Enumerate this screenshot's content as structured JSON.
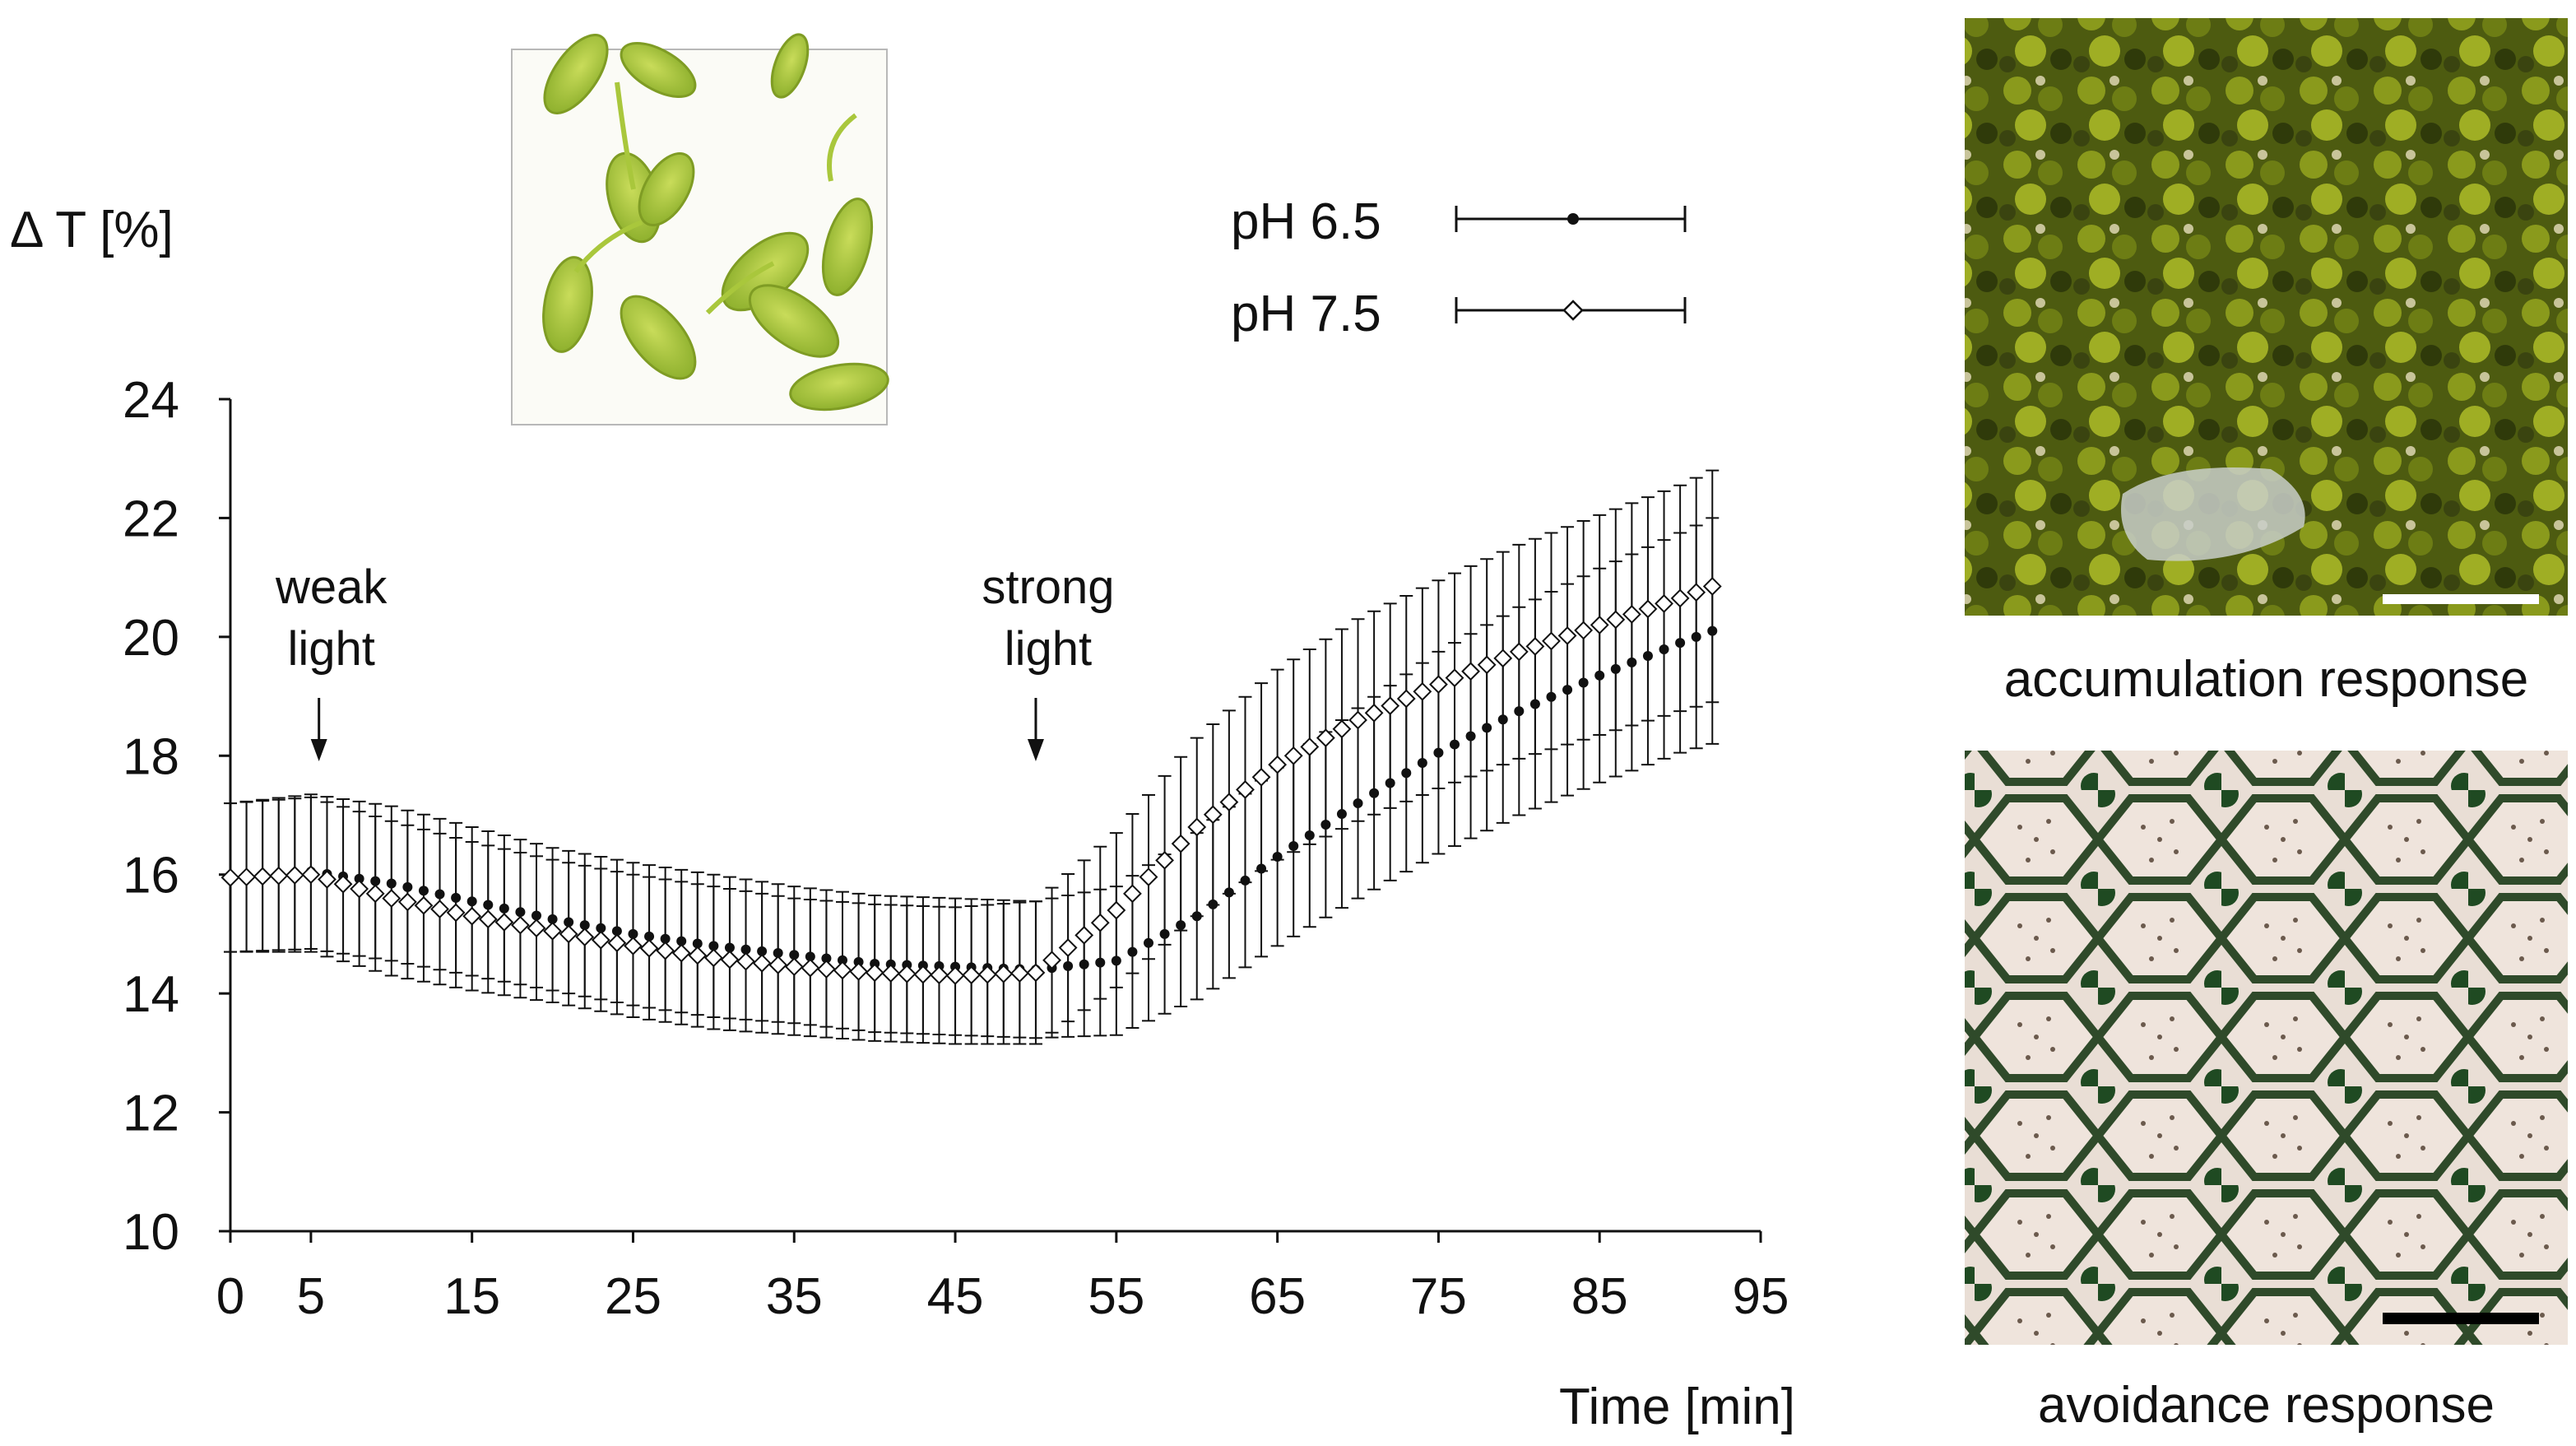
{
  "chart_data": {
    "type": "line",
    "ylabel": "Δ T [%]",
    "xlabel": "Time [min]",
    "xlim": [
      0,
      95
    ],
    "ylim": [
      10,
      24
    ],
    "xticks": [
      0,
      5,
      15,
      25,
      35,
      45,
      55,
      65,
      75,
      85,
      95
    ],
    "yticks": [
      10,
      12,
      14,
      16,
      18,
      20,
      22,
      24
    ],
    "legend_position": "top-right",
    "series": [
      {
        "name": "pH 6.5",
        "marker": "filled-circle",
        "color": "#111111",
        "x": [
          0,
          5,
          10,
          15,
          20,
          25,
          30,
          35,
          40,
          45,
          50,
          55,
          60,
          65,
          70,
          75,
          80,
          85,
          90,
          92
        ],
        "y": [
          15.95,
          16.05,
          15.85,
          15.55,
          15.25,
          15.0,
          14.8,
          14.65,
          14.5,
          14.45,
          14.4,
          14.55,
          15.3,
          16.3,
          17.2,
          18.05,
          18.75,
          19.35,
          19.9,
          20.1
        ],
        "err": [
          1.25,
          1.3,
          1.3,
          1.25,
          1.2,
          1.2,
          1.2,
          1.15,
          1.15,
          1.15,
          1.15,
          1.25,
          1.4,
          1.5,
          1.6,
          1.7,
          1.75,
          1.8,
          1.85,
          1.9
        ]
      },
      {
        "name": "pH 7.5",
        "marker": "open-diamond",
        "color": "#111111",
        "x": [
          0,
          5,
          10,
          15,
          20,
          25,
          30,
          35,
          40,
          45,
          50,
          55,
          60,
          65,
          70,
          75,
          80,
          85,
          90,
          92
        ],
        "y": [
          15.95,
          16.0,
          15.6,
          15.3,
          15.05,
          14.8,
          14.6,
          14.45,
          14.35,
          14.3,
          14.35,
          15.4,
          16.8,
          17.85,
          18.6,
          19.2,
          19.75,
          20.2,
          20.65,
          20.85
        ],
        "err": [
          1.25,
          1.3,
          1.3,
          1.25,
          1.2,
          1.2,
          1.2,
          1.15,
          1.15,
          1.15,
          1.2,
          1.3,
          1.5,
          1.6,
          1.7,
          1.75,
          1.8,
          1.85,
          1.9,
          1.95
        ]
      }
    ],
    "annotations": [
      {
        "lines": [
          "weak",
          "light"
        ],
        "x": 5.5
      },
      {
        "lines": [
          "strong",
          "light"
        ],
        "x": 50
      }
    ]
  },
  "panels": {
    "inset_label": "",
    "accumulation_caption": "accumulation response",
    "avoidance_caption": "avoidance response"
  },
  "colors": {
    "leaf_green": "#9cc23a",
    "accumulation_green": "#5d6e12",
    "avoidance_tint": "#e8dcd2",
    "scalebar_white": "#ffffff",
    "scalebar_black": "#000000"
  }
}
